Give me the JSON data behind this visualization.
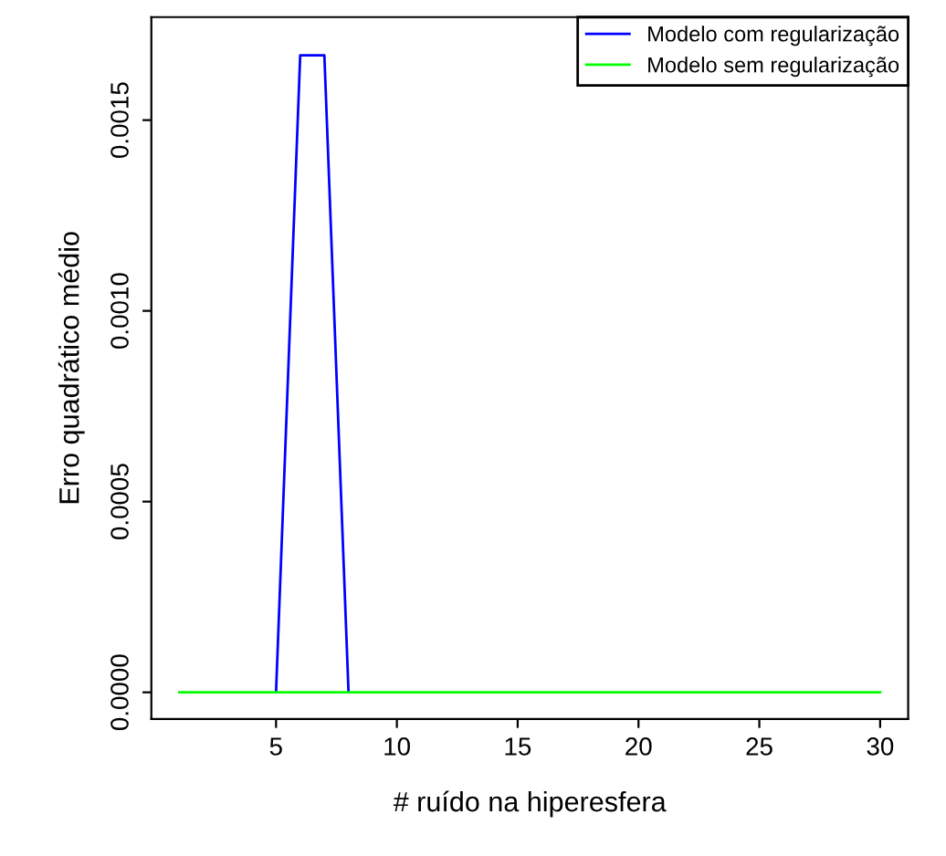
{
  "chart_data": {
    "type": "line",
    "xlabel": "# ruído na hiperesfera",
    "ylabel": "Erro quadrático médio",
    "x": [
      1,
      2,
      3,
      4,
      5,
      6,
      7,
      8,
      9,
      10,
      11,
      12,
      13,
      14,
      15,
      16,
      17,
      18,
      19,
      20,
      21,
      22,
      23,
      24,
      25,
      26,
      27,
      28,
      29,
      30
    ],
    "series": [
      {
        "name": "Modelo com regularização",
        "color": "#0000ff",
        "values": [
          null,
          null,
          null,
          null,
          0,
          0.00167,
          0.00167,
          0,
          null,
          null,
          null,
          null,
          null,
          null,
          null,
          null,
          null,
          null,
          null,
          null,
          null,
          null,
          null,
          null,
          null,
          null,
          null,
          null,
          null,
          null
        ]
      },
      {
        "name": "Modelo sem regularização",
        "color": "#00ff00",
        "values": [
          0,
          0,
          0,
          0,
          0,
          0,
          0,
          0,
          0,
          0,
          0,
          0,
          0,
          0,
          0,
          0,
          0,
          0,
          0,
          0,
          0,
          0,
          0,
          0,
          0,
          0,
          0,
          0,
          0,
          0
        ]
      }
    ],
    "xlim": [
      -0.16,
      31.16
    ],
    "xticks": [
      5,
      10,
      15,
      20,
      25,
      30
    ],
    "ylim": [
      -7e-05,
      0.00177
    ],
    "yticks": [
      {
        "value": 0,
        "label": "0.0000"
      },
      {
        "value": 0.0005,
        "label": "0.0005"
      },
      {
        "value": 0.001,
        "label": "0.0010"
      },
      {
        "value": 0.0015,
        "label": "0.0015"
      }
    ],
    "grid": false,
    "legend": "top right",
    "marker": "none",
    "line_style": "solid"
  }
}
